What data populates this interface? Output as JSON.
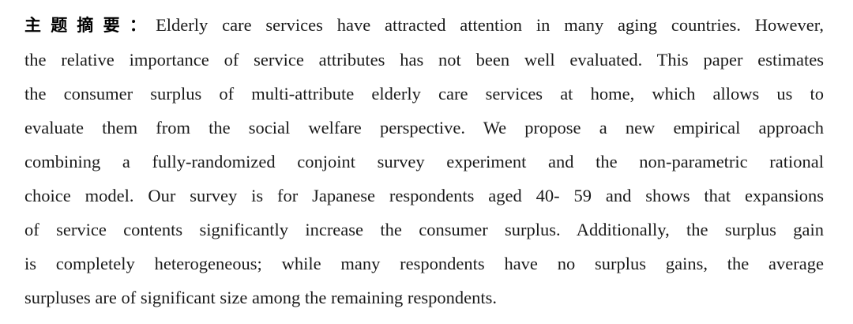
{
  "abstract": {
    "label": "主题摘要：",
    "lines": [
      "Elderly care services have attracted attention in many aging countries. However,",
      "the relative importance of service attributes has not been well evaluated. This paper estimates",
      "the consumer surplus of multi-attribute elderly care services at home, which allows us to",
      "evaluate them from the social welfare perspective. We propose a new empirical approach",
      "combining a fully-randomized conjoint survey experiment and the non-parametric rational",
      "choice model. Our survey is for Japanese respondents aged 40- 59 and shows that expansions",
      "of service contents significantly increase the consumer surplus. Additionally, the surplus gain",
      "is completely heterogeneous; while many respondents have no surplus gains, the average",
      "surpluses are of significant size among the remaining respondents."
    ]
  }
}
